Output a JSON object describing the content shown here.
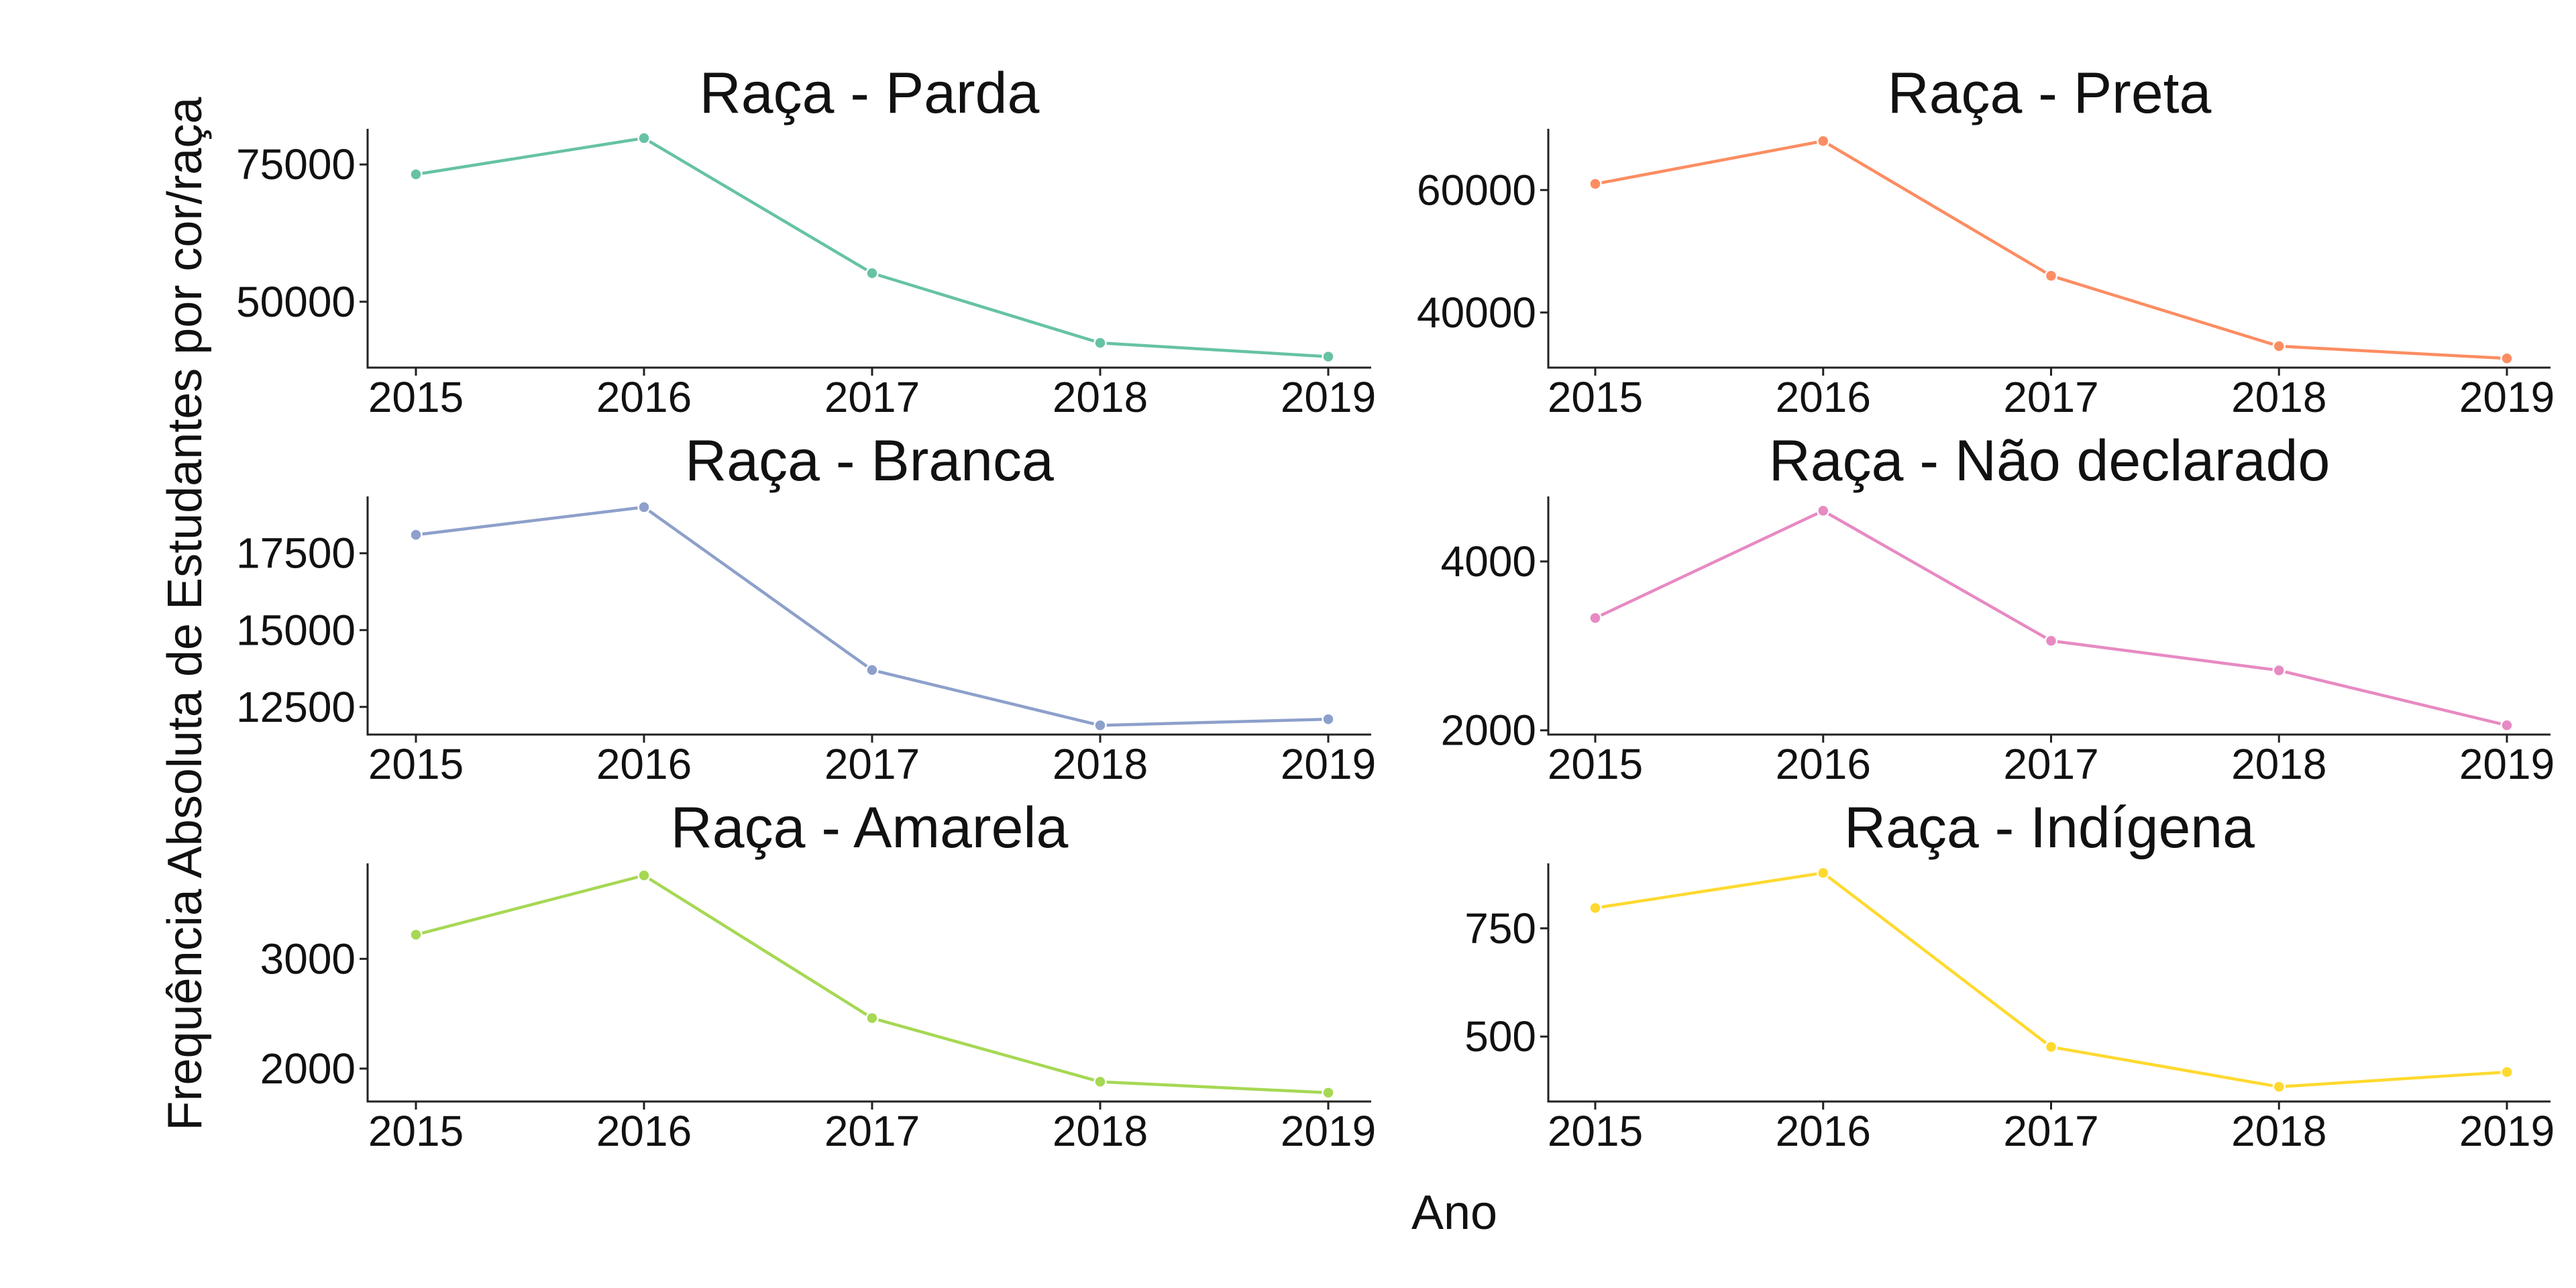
{
  "figure": {
    "xlabel": "Ano",
    "ylabel": "Frequência Absoluta de Estudantes por cor/raça"
  },
  "chart_data": [
    {
      "type": "line",
      "title": "Raça - Parda",
      "color": "#66c2a5",
      "x": [
        "2015",
        "2016",
        "2017",
        "2018",
        "2019"
      ],
      "series": [
        {
          "values": [
            73200,
            79800,
            55200,
            42500,
            40000
          ]
        }
      ],
      "yticks": [
        50000,
        75000
      ],
      "ylim": [
        38000,
        81500
      ],
      "grid": false
    },
    {
      "type": "line",
      "title": "Raça - Preta",
      "color": "#fc8d62",
      "x": [
        "2015",
        "2016",
        "2017",
        "2018",
        "2019"
      ],
      "series": [
        {
          "values": [
            61000,
            68000,
            46000,
            34500,
            32500
          ]
        }
      ],
      "yticks": [
        40000,
        60000
      ],
      "ylim": [
        31000,
        70000
      ],
      "grid": false
    },
    {
      "type": "line",
      "title": "Raça - Branca",
      "color": "#8da0cb",
      "x": [
        "2015",
        "2016",
        "2017",
        "2018",
        "2019"
      ],
      "series": [
        {
          "values": [
            18100,
            19000,
            13700,
            11900,
            12100
          ]
        }
      ],
      "yticks": [
        12500,
        15000,
        17500
      ],
      "ylim": [
        11600,
        19350
      ],
      "grid": false
    },
    {
      "type": "line",
      "title": "Raça - Não declarado",
      "color": "#e78ac3",
      "x": [
        "2015",
        "2016",
        "2017",
        "2018",
        "2019"
      ],
      "series": [
        {
          "values": [
            3330,
            4600,
            3060,
            2710,
            2060
          ]
        }
      ],
      "yticks": [
        2000,
        4000
      ],
      "ylim": [
        1950,
        4770
      ],
      "grid": false
    },
    {
      "type": "line",
      "title": "Raça - Amarela",
      "color": "#a6d854",
      "x": [
        "2015",
        "2016",
        "2017",
        "2018",
        "2019"
      ],
      "series": [
        {
          "values": [
            3220,
            3760,
            2460,
            1880,
            1780
          ]
        }
      ],
      "yticks": [
        2000,
        3000
      ],
      "ylim": [
        1700,
        3870
      ],
      "grid": false
    },
    {
      "type": "line",
      "title": "Raça - Indígena",
      "color": "#ffd92f",
      "x": [
        "2015",
        "2016",
        "2017",
        "2018",
        "2019"
      ],
      "series": [
        {
          "values": [
            797,
            878,
            476,
            384,
            418
          ]
        }
      ],
      "yticks": [
        500,
        750
      ],
      "ylim": [
        350,
        900
      ],
      "grid": false
    }
  ]
}
